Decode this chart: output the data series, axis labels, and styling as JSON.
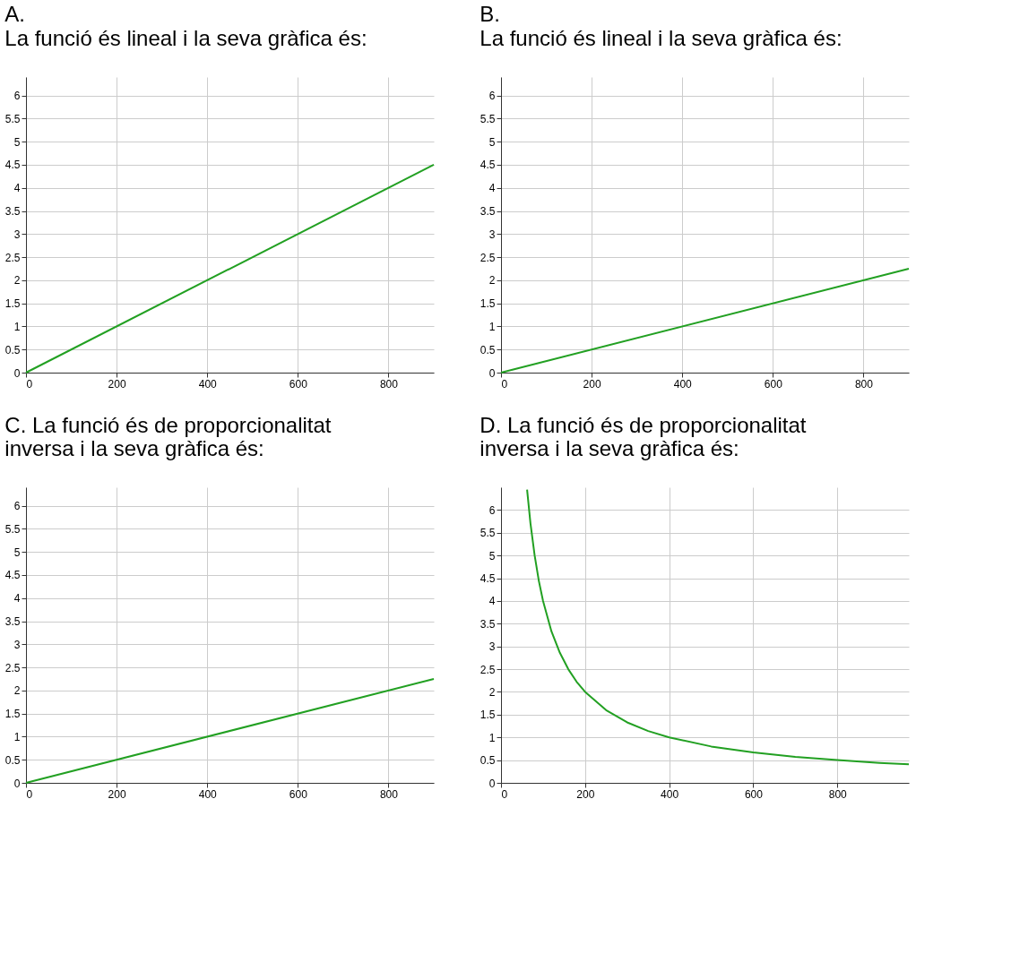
{
  "chart_data": [
    {
      "type": "line",
      "title": "A.",
      "subtitle": "La funció és lineal i la seva gràfica és:",
      "x": [
        0,
        900
      ],
      "series": [
        {
          "color": "#22a022",
          "values": [
            0,
            4.5
          ]
        }
      ],
      "xlim": [
        0,
        900
      ],
      "ylim": [
        0,
        6.4
      ],
      "xticks": [
        0,
        200,
        400,
        600,
        800
      ],
      "yticks": [
        0,
        0.5,
        1,
        1.5,
        2,
        2.5,
        3,
        3.5,
        4,
        4.5,
        5,
        5.5,
        6
      ],
      "grid": true,
      "legend": false
    },
    {
      "type": "line",
      "title": "B.",
      "subtitle": "La funció és lineal i la seva gràfica és:",
      "x": [
        0,
        900
      ],
      "series": [
        {
          "color": "#22a022",
          "values": [
            0,
            2.25
          ]
        }
      ],
      "xlim": [
        0,
        900
      ],
      "ylim": [
        0,
        6.4
      ],
      "xticks": [
        0,
        200,
        400,
        600,
        800
      ],
      "yticks": [
        0,
        0.5,
        1,
        1.5,
        2,
        2.5,
        3,
        3.5,
        4,
        4.5,
        5,
        5.5,
        6
      ],
      "grid": true,
      "legend": false
    },
    {
      "type": "line",
      "title": "C. La funció és de proporcionalitat inversa i la seva gràfica és:",
      "x": [
        0,
        900
      ],
      "series": [
        {
          "color": "#22a022",
          "values": [
            0,
            2.25
          ]
        }
      ],
      "xlim": [
        0,
        900
      ],
      "ylim": [
        0,
        6.4
      ],
      "xticks": [
        0,
        200,
        400,
        600,
        800
      ],
      "yticks": [
        0,
        0.5,
        1,
        1.5,
        2,
        2.5,
        3,
        3.5,
        4,
        4.5,
        5,
        5.5,
        6
      ],
      "grid": true,
      "legend": false
    },
    {
      "type": "line",
      "title": "D. La funció és de proporcionalitat inversa i la seva gràfica és:",
      "x": [
        62,
        70,
        80,
        90,
        100,
        120,
        140,
        160,
        180,
        200,
        250,
        300,
        350,
        400,
        500,
        600,
        700,
        800,
        900,
        970
      ],
      "series": [
        {
          "color": "#22a022",
          "values": [
            6.45,
            5.71,
            5,
            4.44,
            4,
            3.33,
            2.86,
            2.5,
            2.22,
            2,
            1.6,
            1.33,
            1.14,
            1,
            0.8,
            0.67,
            0.57,
            0.5,
            0.44,
            0.41
          ]
        }
      ],
      "xlim": [
        0,
        970
      ],
      "ylim": [
        0,
        6.5
      ],
      "xticks": [
        0,
        200,
        400,
        600,
        800
      ],
      "yticks": [
        0,
        0.5,
        1,
        1.5,
        2,
        2.5,
        3,
        3.5,
        4,
        4.5,
        5,
        5.5,
        6
      ],
      "grid": true,
      "legend": false
    }
  ]
}
